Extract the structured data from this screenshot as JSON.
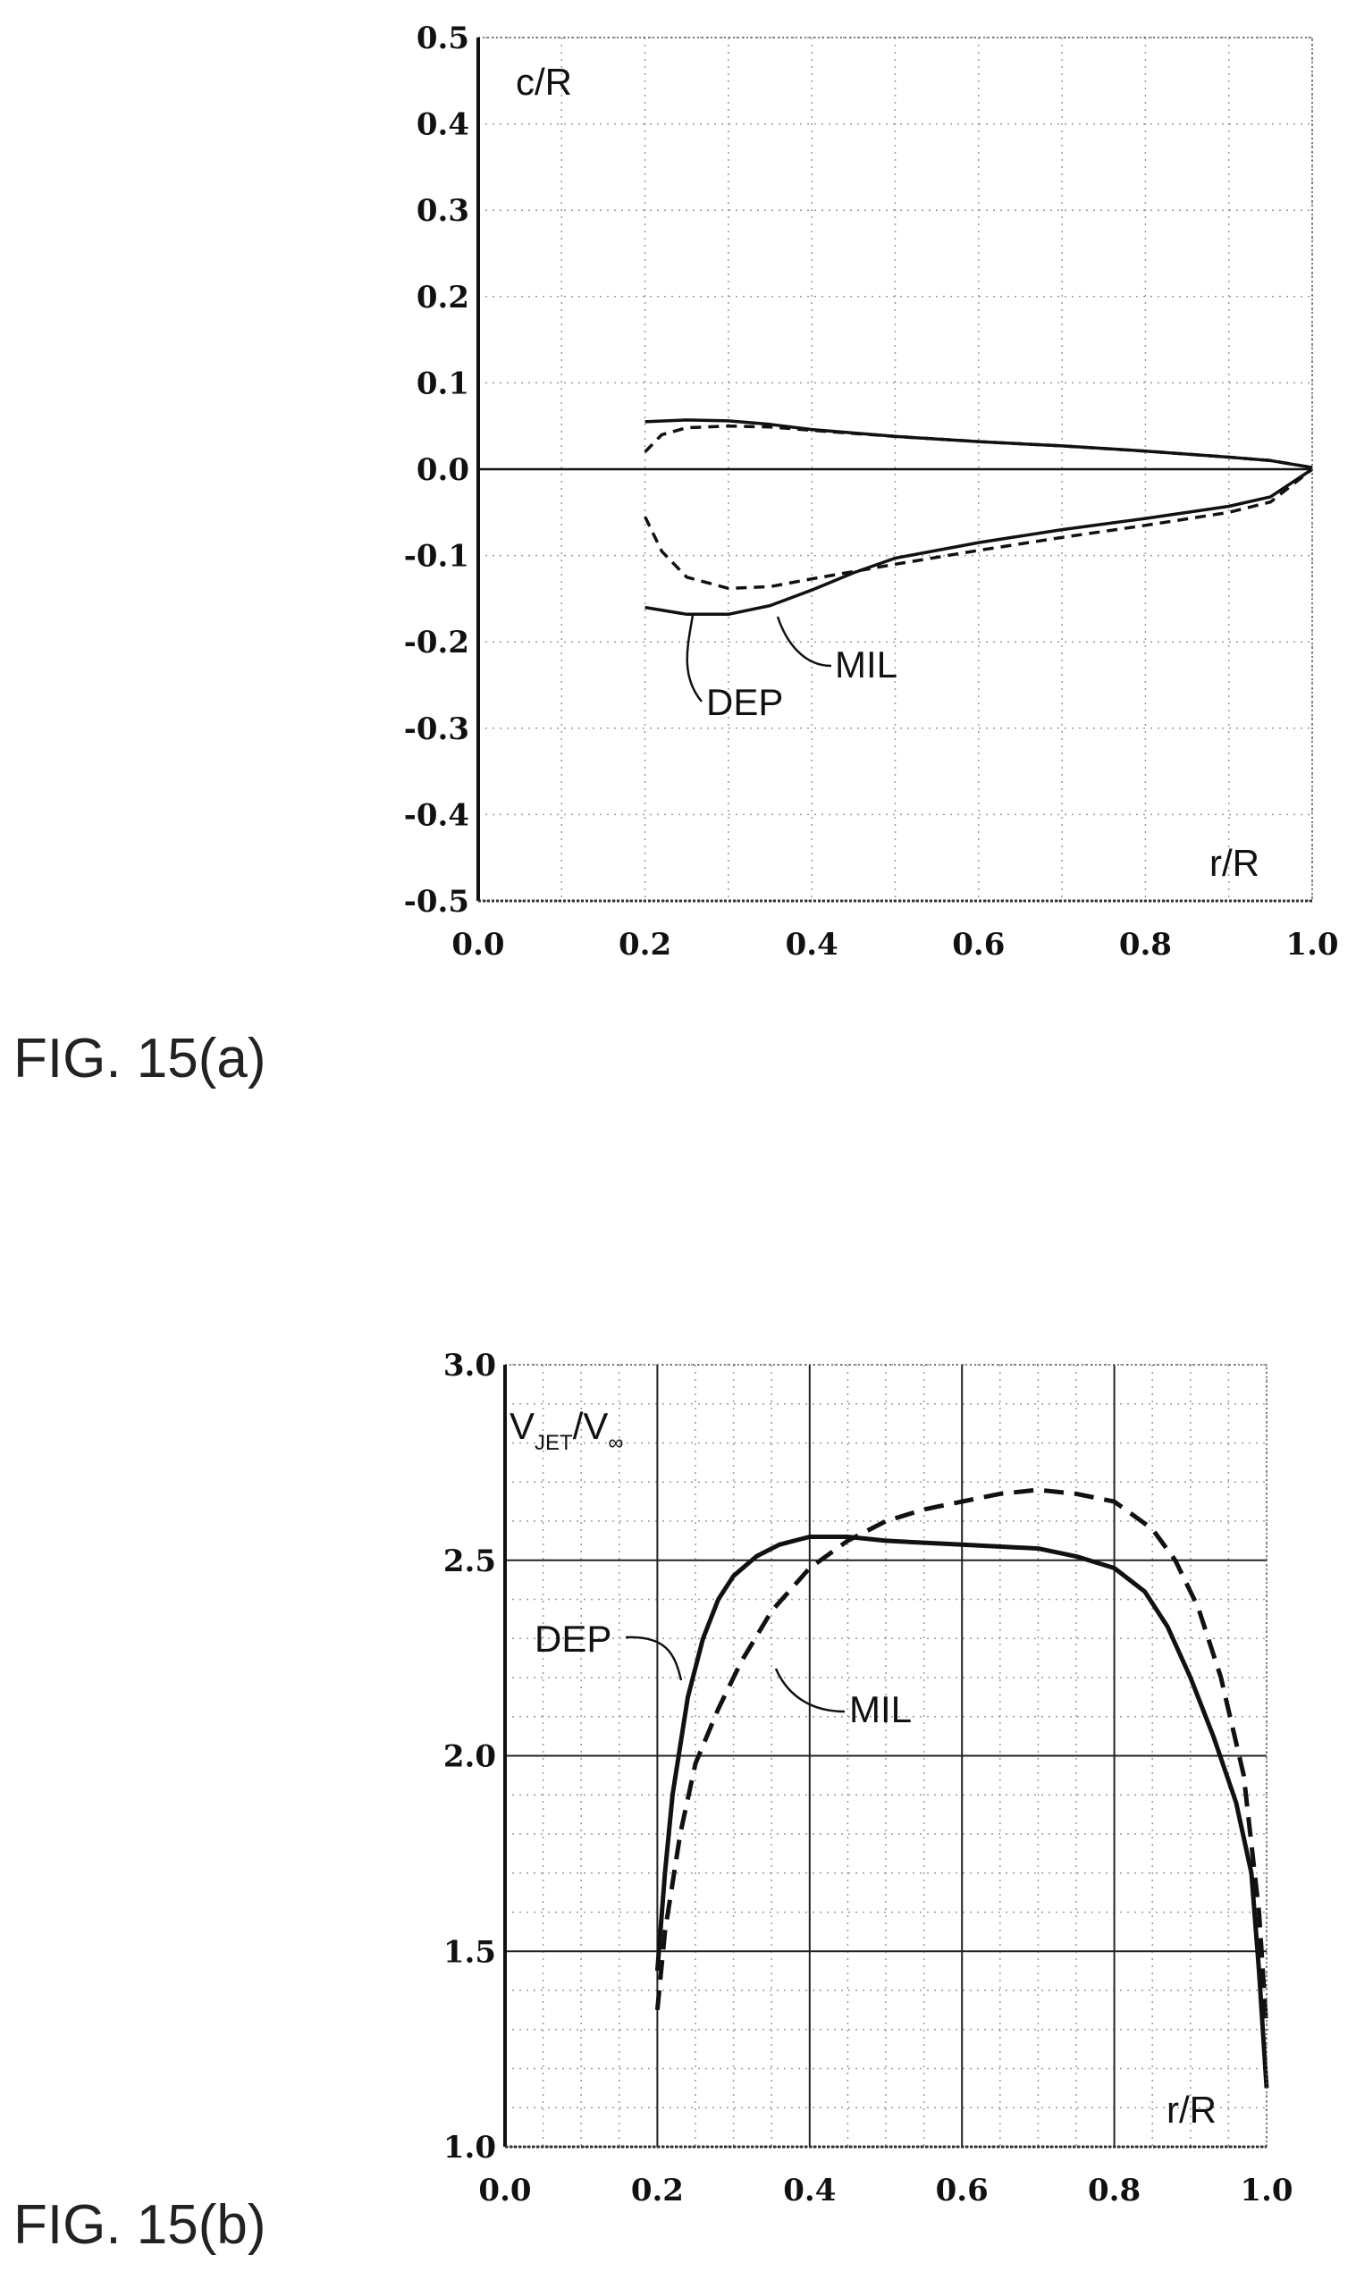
{
  "figures": [
    {
      "caption": "FIG. 15(a)"
    },
    {
      "caption": "FIG. 15(b)"
    }
  ],
  "chart_data": [
    {
      "type": "line",
      "title": "",
      "ylabel": "c/R",
      "xlabel": "r/R",
      "xlim": [
        0.0,
        1.0
      ],
      "ylim": [
        -0.5,
        0.5
      ],
      "xticks": [
        "0.0",
        "0.2",
        "0.4",
        "0.6",
        "0.8",
        "1.0"
      ],
      "yticks": [
        "0.5",
        "0.4",
        "0.3",
        "0.2",
        "0.1",
        "0.0",
        "-0.1",
        "-0.2",
        "-0.3",
        "-0.4",
        "-0.5"
      ],
      "grid": true,
      "series": [
        {
          "name": "DEP",
          "style": "solid",
          "part": "upper",
          "x": [
            0.2,
            0.25,
            0.3,
            0.35,
            0.4,
            0.5,
            0.6,
            0.7,
            0.8,
            0.9,
            0.95,
            1.0
          ],
          "y": [
            0.055,
            0.057,
            0.056,
            0.052,
            0.046,
            0.038,
            0.032,
            0.027,
            0.021,
            0.014,
            0.01,
            0.002
          ]
        },
        {
          "name": "DEP",
          "style": "solid",
          "part": "lower",
          "x": [
            0.2,
            0.25,
            0.3,
            0.35,
            0.4,
            0.45,
            0.5,
            0.6,
            0.7,
            0.8,
            0.9,
            0.95,
            1.0
          ],
          "y": [
            -0.16,
            -0.168,
            -0.168,
            -0.158,
            -0.14,
            -0.12,
            -0.103,
            -0.085,
            -0.07,
            -0.057,
            -0.043,
            -0.032,
            0.0
          ]
        },
        {
          "name": "MIL",
          "style": "dashed",
          "part": "upper",
          "x": [
            0.2,
            0.22,
            0.25,
            0.3,
            0.35,
            0.4,
            0.5,
            0.6,
            0.7,
            0.8,
            0.9,
            0.95,
            1.0
          ],
          "y": [
            0.02,
            0.04,
            0.048,
            0.05,
            0.049,
            0.045,
            0.038,
            0.032,
            0.027,
            0.021,
            0.014,
            0.01,
            0.002
          ]
        },
        {
          "name": "MIL",
          "style": "dashed",
          "part": "lower",
          "x": [
            0.2,
            0.22,
            0.25,
            0.3,
            0.35,
            0.4,
            0.5,
            0.6,
            0.7,
            0.8,
            0.9,
            0.95,
            1.0
          ],
          "y": [
            -0.055,
            -0.095,
            -0.125,
            -0.138,
            -0.136,
            -0.127,
            -0.11,
            -0.094,
            -0.079,
            -0.065,
            -0.05,
            -0.038,
            0.0
          ]
        }
      ],
      "annotations": [
        "MIL",
        "DEP"
      ]
    },
    {
      "type": "line",
      "title": "",
      "ylabel": "V_JET/V_∞",
      "ylabel_parts": {
        "v1": "V",
        "sub1": "JET",
        "slash": "/V",
        "sub2": "∞"
      },
      "xlabel": "r/R",
      "xlim": [
        0.0,
        1.0
      ],
      "ylim": [
        1.0,
        3.0
      ],
      "xticks": [
        "0.0",
        "0.2",
        "0.4",
        "0.6",
        "0.8",
        "1.0"
      ],
      "yticks": [
        "3.0",
        "2.5",
        "2.0",
        "1.5",
        "1.0"
      ],
      "grid": true,
      "series": [
        {
          "name": "DEP",
          "style": "solid",
          "x": [
            0.2,
            0.21,
            0.22,
            0.24,
            0.26,
            0.28,
            0.3,
            0.33,
            0.36,
            0.4,
            0.45,
            0.5,
            0.6,
            0.7,
            0.75,
            0.8,
            0.84,
            0.87,
            0.9,
            0.93,
            0.96,
            0.98,
            0.99,
            1.0
          ],
          "y": [
            1.45,
            1.7,
            1.9,
            2.15,
            2.3,
            2.4,
            2.46,
            2.51,
            2.54,
            2.56,
            2.56,
            2.55,
            2.54,
            2.53,
            2.51,
            2.48,
            2.42,
            2.33,
            2.2,
            2.05,
            1.88,
            1.7,
            1.45,
            1.15
          ]
        },
        {
          "name": "MIL",
          "style": "dashed",
          "x": [
            0.2,
            0.21,
            0.23,
            0.25,
            0.28,
            0.31,
            0.35,
            0.4,
            0.45,
            0.5,
            0.55,
            0.6,
            0.65,
            0.7,
            0.75,
            0.8,
            0.85,
            0.88,
            0.91,
            0.94,
            0.97,
            0.99,
            1.0
          ],
          "y": [
            1.35,
            1.55,
            1.8,
            1.98,
            2.12,
            2.24,
            2.37,
            2.48,
            2.55,
            2.6,
            2.63,
            2.65,
            2.67,
            2.68,
            2.67,
            2.65,
            2.58,
            2.5,
            2.38,
            2.2,
            1.95,
            1.6,
            1.3
          ]
        }
      ],
      "annotations": [
        "DEP",
        "MIL"
      ]
    }
  ]
}
